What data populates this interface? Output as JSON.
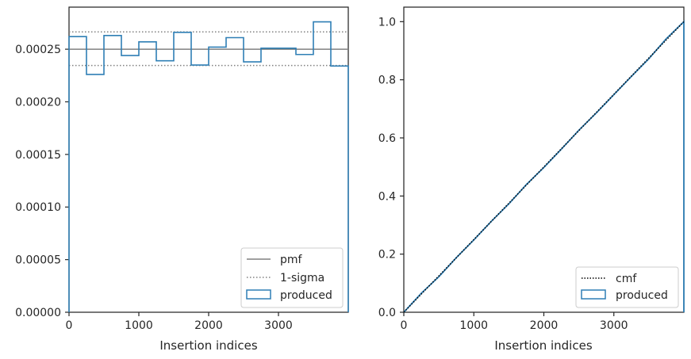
{
  "chart_data": [
    {
      "type": "line",
      "panel": "left",
      "xlabel": "Insertion indices",
      "ylabel": "",
      "xlim": [
        0,
        4000
      ],
      "ylim": [
        0,
        0.00029
      ],
      "x_ticks": [
        0,
        1000,
        2000,
        3000
      ],
      "x_tick_labels": [
        "0",
        "1000",
        "2000",
        "3000"
      ],
      "y_ticks": [
        0,
        5e-05,
        0.0001,
        0.00015,
        0.0002,
        0.00025
      ],
      "y_tick_labels": [
        "0.00000",
        "0.00005",
        "0.00010",
        "0.00015",
        "0.00020",
        "0.00025"
      ],
      "grid": false,
      "legend_position": "lower-right",
      "legend": [
        "pmf",
        "1-sigma",
        "produced"
      ],
      "pmf_value": 0.00025,
      "sigma_band": [
        0.0002345,
        0.0002665
      ],
      "histogram": {
        "name": "produced",
        "bin_edges": [
          0,
          250,
          500,
          750,
          1000,
          1250,
          1500,
          1750,
          2000,
          2250,
          2500,
          2750,
          3000,
          3250,
          3500,
          3750,
          4000
        ],
        "values": [
          0.000262,
          0.000226,
          0.000263,
          0.000244,
          0.000257,
          0.000239,
          0.000266,
          0.000235,
          0.000252,
          0.000261,
          0.000238,
          0.000251,
          0.000251,
          0.000245,
          0.000276,
          0.000234
        ]
      }
    },
    {
      "type": "line",
      "panel": "right",
      "xlabel": "Insertion indices",
      "ylabel": "",
      "xlim": [
        0,
        4000
      ],
      "ylim": [
        0,
        1.05
      ],
      "x_ticks": [
        0,
        1000,
        2000,
        3000
      ],
      "x_tick_labels": [
        "0",
        "1000",
        "2000",
        "3000"
      ],
      "y_ticks": [
        0,
        0.2,
        0.4,
        0.6,
        0.8,
        1.0
      ],
      "y_tick_labels": [
        "0.0",
        "0.2",
        "0.4",
        "0.6",
        "0.8",
        "1.0"
      ],
      "grid": false,
      "legend_position": "lower-right",
      "legend": [
        "cmf",
        "produced"
      ],
      "cmf": {
        "x": [
          0,
          4000
        ],
        "y": [
          0,
          1.0
        ]
      },
      "cumulative": {
        "name": "produced",
        "x": [
          0,
          250,
          500,
          750,
          1000,
          1250,
          1500,
          1750,
          2000,
          2250,
          2500,
          2750,
          3000,
          3250,
          3500,
          3750,
          4000
        ],
        "y": [
          0,
          0.0655,
          0.122,
          0.1878,
          0.2488,
          0.313,
          0.3728,
          0.4393,
          0.498,
          0.561,
          0.6263,
          0.6858,
          0.7485,
          0.8113,
          0.8725,
          0.9415,
          1.0
        ]
      }
    }
  ],
  "colors": {
    "produced": "#2f7fb5",
    "pmf": "#808080",
    "sigma": "#808080",
    "cmf": "#000000",
    "axis": "#262626"
  }
}
